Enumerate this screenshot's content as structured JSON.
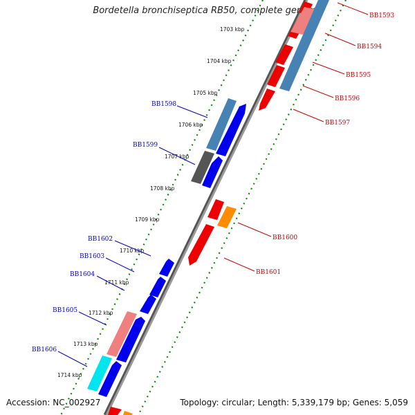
{
  "title": "Bordetella bronchiseptica RB50, complete genome",
  "footer": {
    "accession": "Accession: NC_002927",
    "summary": "Topology: circular; Length: 5,339,179 bp; Genes: 5,059"
  },
  "ticks": [
    "1703 kbp",
    "1704 kbp",
    "1705 kbp",
    "1706 kbp",
    "1707 kbp",
    "1708 kbp",
    "1709 kbp",
    "1710 kbp",
    "1711 kbp",
    "1712 kbp",
    "1713 kbp",
    "1714 kbp"
  ],
  "colors": {
    "label_forward": "#0000cc",
    "label_reverse": "#cc0000",
    "blue": "#0000ee",
    "steelblue": "#4682b4",
    "red": "#ee0000",
    "pink": "#f08080",
    "gray": "#555555",
    "cyan": "#00e5ee",
    "orange": "#ff8c00",
    "backbone": "#808080",
    "tick_green": "#0a8a0a"
  },
  "labels_left": [
    "BB1598",
    "BB1599",
    "BB1602",
    "BB1603",
    "BB1604",
    "BB1605",
    "BB1606"
  ],
  "labels_right": [
    "BB1593",
    "BB1594",
    "BB1595",
    "BB1596",
    "BB1597",
    "BB1600",
    "BB1601"
  ]
}
